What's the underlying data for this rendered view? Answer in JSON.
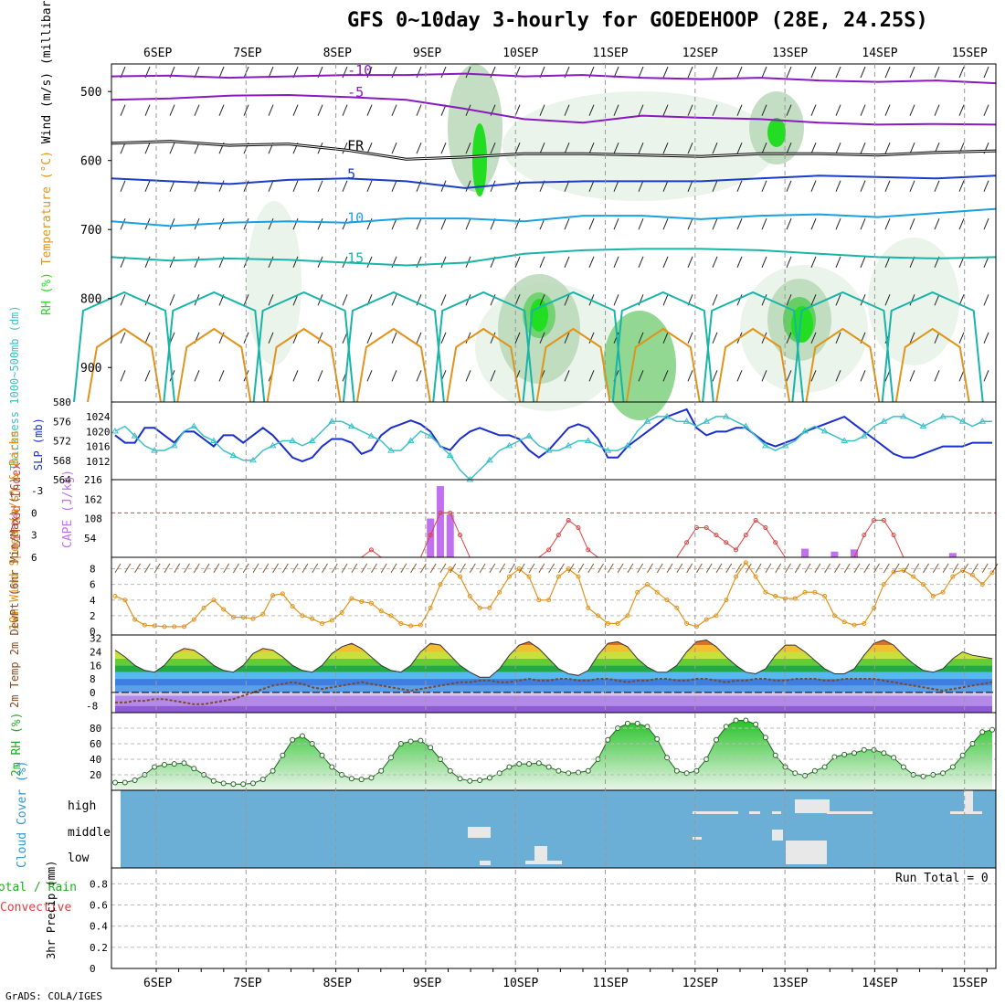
{
  "title": "GFS 0~10day 3-hourly for GOEDEHOOP (28E, 24.25S)",
  "credit": "GrADS: COLA/IGES",
  "dates": [
    "6SEP",
    "7SEP",
    "8SEP",
    "9SEP",
    "10SEP",
    "11SEP",
    "12SEP",
    "13SEP",
    "14SEP",
    "15SEP"
  ],
  "colors": {
    "purple": "#8a1ac0",
    "blue": "#1a3cc8",
    "cyan": "#1aa0e0",
    "teal": "#18b4a8",
    "orange": "#e0941c",
    "black": "#000000",
    "green_light": "#e6f2e6",
    "green_mid": "#b8d8b8",
    "green_dark": "#8fb08f",
    "green_bright": "#22dd22",
    "slp": "#1a2ecc",
    "thk": "#3cc0c8",
    "cape": "#c070f0",
    "li": "#e04040",
    "wind": "#e0941c",
    "rh2m": "#22aa22",
    "cloud_bg": "#6baed6",
    "cloud_fill": "#e8e8e8"
  },
  "chart_data": [
    {
      "type": "contour",
      "panel": "upper-air",
      "ylabel_parts": [
        "RH (%)",
        "Temperature (°C)",
        "Wind (m/s)",
        "(millibars)"
      ],
      "yticks": [
        500,
        600,
        700,
        800,
        900
      ],
      "ylim": [
        460,
        950
      ],
      "temperature_contours": [
        {
          "label": "-10",
          "p": [
            478,
            477,
            480,
            478,
            476,
            476,
            474,
            478,
            476,
            480,
            482,
            480,
            484,
            486,
            484,
            488
          ]
        },
        {
          "label": "-5",
          "p": [
            512,
            510,
            506,
            505,
            508,
            512,
            525,
            540,
            545,
            535,
            538,
            540,
            545,
            548,
            547,
            548
          ]
        },
        {
          "label": "FR",
          "p": [
            575,
            572,
            578,
            576,
            585,
            598,
            595,
            590,
            590,
            592,
            594,
            590,
            590,
            592,
            588,
            586
          ]
        },
        {
          "label": "5",
          "p": [
            626,
            630,
            634,
            628,
            626,
            630,
            640,
            632,
            630,
            630,
            630,
            626,
            622,
            624,
            626,
            622
          ]
        },
        {
          "label": "10",
          "p": [
            688,
            695,
            690,
            688,
            690,
            684,
            684,
            688,
            680,
            680,
            685,
            680,
            678,
            682,
            676,
            670
          ]
        },
        {
          "label": "15",
          "p": [
            740,
            745,
            742,
            744,
            748,
            752,
            748,
            735,
            730,
            728,
            728,
            730,
            735,
            740,
            742,
            740
          ]
        }
      ],
      "rh_levels": [
        10,
        30,
        50,
        60,
        80,
        90
      ]
    },
    {
      "type": "line",
      "panel": "slp-thickness",
      "title": "SLP (mb) / Thickness 1000~500mb (dm)",
      "ylabel_left": "Thickness 1000~500mb (dm)",
      "ylabel_right": "SLP (mb)",
      "left_ticks": [
        564,
        568,
        572,
        576,
        580
      ],
      "right_ticks": [
        1012,
        1016,
        1020,
        1024
      ],
      "series": [
        {
          "name": "SLP (mb)",
          "values": [
            1019,
            1017,
            1017,
            1021,
            1021,
            1019,
            1017,
            1020,
            1020,
            1018,
            1016,
            1019,
            1019,
            1017,
            1019,
            1021,
            1019,
            1016,
            1013,
            1012,
            1013,
            1016,
            1018,
            1018,
            1017,
            1014,
            1015,
            1019,
            1021,
            1022,
            1023,
            1022,
            1020,
            1016,
            1015,
            1018,
            1020,
            1021,
            1020,
            1019,
            1019,
            1018,
            1015,
            1013,
            1015,
            1018,
            1021,
            1022,
            1021,
            1018,
            1013,
            1013,
            1016,
            1018,
            1020,
            1022,
            1024,
            1025,
            1026,
            1021,
            1019,
            1020,
            1020,
            1021,
            1021,
            1019,
            1017,
            1016,
            1017,
            1018,
            1020,
            1021,
            1022,
            1023,
            1024,
            1022,
            1020,
            1018,
            1016,
            1014,
            1013,
            1013,
            1014,
            1015,
            1016,
            1016,
            1016,
            1017,
            1017,
            1017
          ]
        },
        {
          "name": "Thickness (dm)",
          "values": [
            574,
            575,
            573,
            571,
            570,
            570,
            571,
            574,
            575,
            573,
            572,
            570,
            569,
            568,
            568,
            570,
            571,
            572,
            572,
            571,
            572,
            574,
            576,
            576,
            575,
            574,
            573,
            572,
            570,
            570,
            572,
            574,
            573,
            571,
            569,
            566,
            564,
            566,
            568,
            570,
            571,
            572,
            573,
            571,
            570,
            570,
            571,
            572,
            572,
            571,
            570,
            570,
            571,
            574,
            576,
            577,
            577,
            576,
            576,
            575,
            576,
            577,
            577,
            576,
            575,
            573,
            571,
            570,
            571,
            572,
            574,
            575,
            574,
            573,
            572,
            572,
            573,
            575,
            576,
            577,
            577,
            576,
            575,
            576,
            577,
            577,
            576,
            575,
            576,
            576
          ]
        }
      ]
    },
    {
      "type": "bar-line",
      "panel": "cape-li",
      "ylabel_left": "Lifted Index",
      "ylabel_right": "CAPE (J/kg)",
      "left_ticks": [
        "-3",
        "0",
        "3",
        "6"
      ],
      "right_ticks": [
        54,
        108,
        162,
        216
      ],
      "cape_bars": [
        {
          "t": 32,
          "v": 108
        },
        {
          "t": 33,
          "v": 198
        },
        {
          "t": 34,
          "v": 119
        }
      ],
      "cape_small": [
        {
          "t": 70,
          "v": 24
        },
        {
          "t": 73,
          "v": 16
        },
        {
          "t": 75,
          "v": 22
        },
        {
          "t": 85,
          "v": 12
        }
      ],
      "lifted_index": [
        6,
        6,
        6,
        6,
        6,
        6,
        6,
        6,
        6,
        6,
        6,
        6,
        6,
        6,
        6,
        6,
        6,
        6,
        6,
        6,
        6,
        6,
        6,
        6,
        6,
        6,
        5,
        6,
        6,
        6,
        6,
        6,
        3,
        0,
        0,
        3,
        6,
        6,
        6,
        6,
        6,
        6,
        6,
        6,
        5,
        3,
        1,
        2,
        5,
        6,
        6,
        6,
        6,
        6,
        6,
        6,
        6,
        6,
        4,
        2,
        2,
        3,
        4,
        5,
        3,
        1,
        2,
        4,
        6,
        6,
        6,
        6,
        6,
        6,
        6,
        6,
        3,
        1,
        1,
        3,
        6,
        6,
        6,
        6,
        6,
        6,
        6,
        6,
        6,
        6
      ]
    },
    {
      "type": "line",
      "panel": "wind-10m",
      "ylabel": "10m Wind Speed (m/s) & Barbs",
      "yticks": [
        0,
        2,
        4,
        6,
        8
      ],
      "values": [
        4.5,
        4.0,
        1.5,
        0.8,
        0.7,
        0.6,
        0.6,
        0.6,
        1.5,
        3.0,
        4.0,
        2.8,
        1.8,
        1.8,
        1.6,
        2.2,
        4.6,
        4.8,
        3.2,
        2.0,
        1.6,
        1.0,
        1.4,
        2.4,
        4.2,
        3.8,
        3.6,
        2.6,
        2.0,
        1.0,
        0.7,
        0.8,
        3.0,
        6.0,
        8.0,
        7.0,
        4.5,
        3.0,
        3.0,
        5.0,
        7.0,
        8.0,
        7.0,
        4.0,
        4.0,
        7.0,
        8.0,
        7.0,
        3.0,
        2.0,
        1.0,
        1.0,
        2.0,
        5.0,
        6.0,
        5.0,
        4.0,
        3.0,
        1.0,
        0.6,
        1.5,
        2.0,
        4.0,
        7.0,
        8.8,
        7.0,
        5.0,
        4.5,
        4.2,
        4.2,
        5.0,
        5.0,
        4.5,
        2.0,
        1.2,
        0.8,
        1.0,
        3.0,
        6.0,
        7.6,
        7.8,
        7.0,
        6.0,
        4.5,
        5.0,
        7.0,
        7.8,
        7.2,
        6.0,
        7.5
      ]
    },
    {
      "type": "area",
      "panel": "temp-2m",
      "ylabel": "2m Temp 2m DewPt (6hr Min/Max) (°C)",
      "yticks": [
        -8,
        0,
        8,
        16,
        24,
        32
      ],
      "temperature": [
        25,
        21,
        16,
        13,
        12,
        16,
        23,
        26,
        25,
        21,
        16,
        13,
        12,
        16,
        23,
        26,
        25,
        21,
        16,
        13,
        12,
        16,
        23,
        27,
        29,
        26,
        21,
        16,
        13,
        12,
        16,
        24,
        29,
        28,
        22,
        16,
        12,
        9,
        9,
        14,
        22,
        28,
        30,
        26,
        20,
        14,
        11,
        10,
        13,
        22,
        29,
        30,
        27,
        20,
        15,
        12,
        12,
        16,
        24,
        30,
        31,
        27,
        21,
        16,
        12,
        11,
        14,
        22,
        28,
        28,
        24,
        19,
        14,
        11,
        11,
        14,
        22,
        29,
        31,
        28,
        22,
        17,
        13,
        12,
        14,
        20,
        24,
        22,
        21,
        20
      ],
      "dewpoint": [
        -6,
        -6,
        -5,
        -5,
        -4,
        -4,
        -5,
        -6,
        -7,
        -7,
        -6,
        -5,
        -4,
        -2,
        0,
        2,
        4,
        5,
        6,
        5,
        3,
        2,
        3,
        4,
        5,
        6,
        5,
        4,
        3,
        2,
        1,
        2,
        3,
        4,
        5,
        6,
        6,
        7,
        7,
        6,
        6,
        7,
        8,
        7,
        7,
        8,
        8,
        7,
        7,
        8,
        8,
        7,
        6,
        7,
        7,
        8,
        8,
        7,
        7,
        8,
        8,
        7,
        6,
        7,
        7,
        8,
        8,
        7,
        7,
        8,
        8,
        8,
        7,
        7,
        8,
        8,
        8,
        8,
        7,
        6,
        5,
        4,
        3,
        2,
        1,
        2,
        3,
        4,
        5,
        6
      ]
    },
    {
      "type": "area",
      "panel": "rh-2m",
      "ylabel": "2m RH (%)",
      "yticks": [
        20,
        40,
        60,
        80
      ],
      "values": [
        10,
        10,
        13,
        20,
        30,
        33,
        34,
        35,
        28,
        20,
        12,
        9,
        8,
        8,
        9,
        14,
        25,
        45,
        65,
        70,
        60,
        45,
        30,
        20,
        15,
        14,
        16,
        25,
        42,
        60,
        63,
        64,
        55,
        40,
        25,
        15,
        12,
        13,
        16,
        22,
        30,
        34,
        34,
        35,
        30,
        25,
        22,
        23,
        25,
        40,
        65,
        80,
        86,
        86,
        82,
        66,
        42,
        25,
        22,
        25,
        40,
        65,
        82,
        90,
        90,
        85,
        68,
        45,
        30,
        22,
        19,
        25,
        30,
        43,
        46,
        48,
        52,
        52,
        48,
        42,
        30,
        20,
        18,
        20,
        22,
        30,
        45,
        60,
        75,
        78
      ]
    },
    {
      "type": "bar",
      "panel": "cloud-cover",
      "ylabel": "Cloud Cover (%)",
      "levels": [
        "high",
        "middle",
        "low"
      ]
    },
    {
      "type": "bar",
      "panel": "precip-3hr",
      "ylabel": "3hr Precip (mm)",
      "legend": [
        "Total / Rain",
        "Convective"
      ],
      "yticks": [
        "0",
        "0.2",
        "0.4",
        "0.6",
        "0.8"
      ],
      "annotation": "Run Total = 0"
    }
  ]
}
